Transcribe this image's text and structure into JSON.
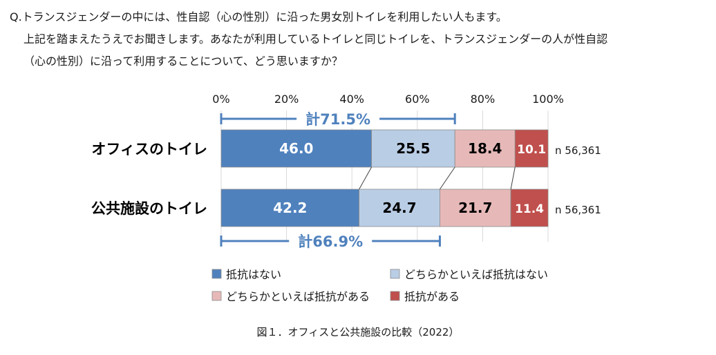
{
  "question": {
    "line1": "Q.トランスジェンダーの中には、性自認（心の性別）に沿った男女別トイレを利用したい人もます。",
    "line2": "上記を踏まえたうえでお聞きします。あなたが利用しているトイレと同じトイレを、トランスジェンダーの人が性自認",
    "line3": "（心の性別）に沿って利用することについて、どう思いますか？"
  },
  "chart_data": {
    "type": "bar",
    "orientation": "horizontal",
    "stacked": true,
    "percent_stacked": true,
    "categories": [
      "オフィスのトイレ",
      "公共施設のトイレ"
    ],
    "series": [
      {
        "name": "抵抗はない",
        "values": [
          46.0,
          42.2
        ],
        "color": "#4f81bd"
      },
      {
        "name": "どちらかといえば抵抗はない",
        "values": [
          25.5,
          24.7
        ],
        "color": "#b9cde5"
      },
      {
        "name": "どちらかといえば抵抗がある",
        "values": [
          18.4,
          21.7
        ],
        "color": "#e6b9b8"
      },
      {
        "name": "抵抗がある",
        "values": [
          10.1,
          11.4
        ],
        "color": "#c0504d"
      }
    ],
    "x_ticks": [
      "0%",
      "20%",
      "40%",
      "60%",
      "80%",
      "100%"
    ],
    "xlim": [
      0,
      100
    ],
    "sample_sizes": [
      "n 56,361",
      "n 56,361"
    ],
    "totals": [
      {
        "label": "計71.5%",
        "value": 71.5
      },
      {
        "label": "計66.9%",
        "value": 66.9
      }
    ],
    "grid": true,
    "legend": "bottom",
    "title": "",
    "xlabel": "",
    "ylabel": ""
  },
  "caption": "図１．オフィスと公共施設の比較（2022）"
}
